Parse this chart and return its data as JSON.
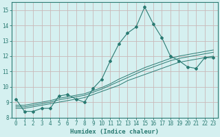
{
  "xlabel": "Humidex (Indice chaleur)",
  "xlim": [
    -0.5,
    23.5
  ],
  "ylim": [
    8,
    15.5
  ],
  "yticks": [
    8,
    9,
    10,
    11,
    12,
    13,
    14,
    15
  ],
  "xticks": [
    0,
    1,
    2,
    3,
    4,
    5,
    6,
    7,
    8,
    9,
    10,
    11,
    12,
    13,
    14,
    15,
    16,
    17,
    18,
    19,
    20,
    21,
    22,
    23
  ],
  "bg_color": "#d5f0f0",
  "grid_color": "#c8b8b8",
  "line_color": "#2a7a72",
  "series_main": [
    9.2,
    8.4,
    8.4,
    8.6,
    8.6,
    9.4,
    9.5,
    9.2,
    9.0,
    9.9,
    10.5,
    11.7,
    12.8,
    13.5,
    13.9,
    15.2,
    14.1,
    13.2,
    12.0,
    11.7,
    11.3,
    11.2,
    11.9,
    11.9
  ],
  "series_trend": [
    [
      8.6,
      8.6,
      8.7,
      8.8,
      8.9,
      9.0,
      9.1,
      9.2,
      9.3,
      9.5,
      9.7,
      9.9,
      10.1,
      10.4,
      10.6,
      10.8,
      11.0,
      11.2,
      11.4,
      11.6,
      11.7,
      11.8,
      11.9,
      12.0
    ],
    [
      8.7,
      8.7,
      8.8,
      8.9,
      9.0,
      9.15,
      9.25,
      9.35,
      9.45,
      9.65,
      9.85,
      10.1,
      10.35,
      10.6,
      10.85,
      11.1,
      11.3,
      11.5,
      11.7,
      11.85,
      11.95,
      12.05,
      12.15,
      12.25
    ],
    [
      8.8,
      8.8,
      8.9,
      9.0,
      9.1,
      9.25,
      9.35,
      9.45,
      9.55,
      9.75,
      9.95,
      10.2,
      10.5,
      10.75,
      11.0,
      11.25,
      11.45,
      11.65,
      11.85,
      12.0,
      12.1,
      12.2,
      12.3,
      12.4
    ]
  ]
}
